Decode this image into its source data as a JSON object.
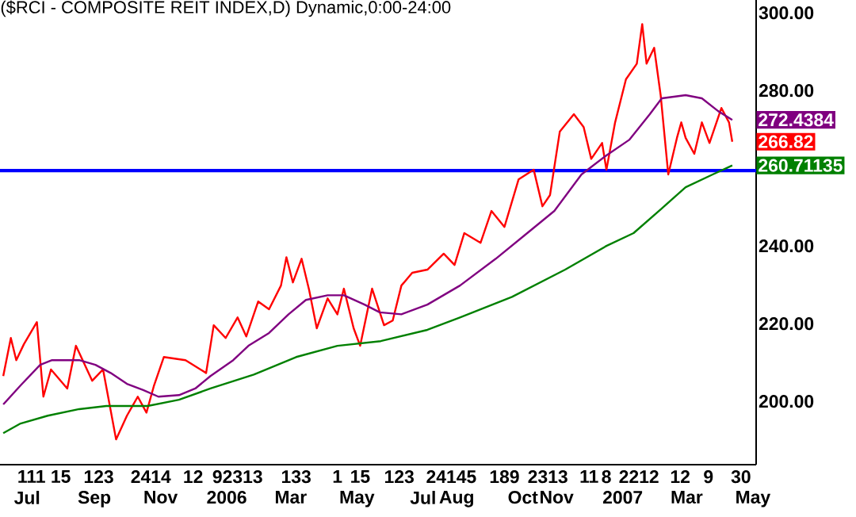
{
  "chart_data": {
    "type": "line",
    "title": "($RCI - COMPOSITE REIT INDEX,D) Dynamic,0:00-24:00",
    "xlim": [
      "2005-06-06",
      "2007-05-04"
    ],
    "xticks": [
      {
        "value": "2005-07-01",
        "label": "Jul"
      },
      {
        "value": "2005-09-01",
        "label": "Sep"
      },
      {
        "value": "2005-11-01",
        "label": "Nov"
      },
      {
        "value": "2006-01-01",
        "label": "2006"
      },
      {
        "value": "2006-03-01",
        "label": "Mar"
      },
      {
        "value": "2006-05-01",
        "label": "May"
      },
      {
        "value": "2006-07-01",
        "label": "Jul"
      },
      {
        "value": "2006-08-01",
        "label": "Aug"
      },
      {
        "value": "2006-10-01",
        "label": "Oct"
      },
      {
        "value": "2006-11-01",
        "label": "Nov"
      },
      {
        "value": "2007-01-01",
        "label": "2007"
      },
      {
        "value": "2007-03-01",
        "label": "Mar"
      },
      {
        "value": "2007-05-01",
        "label": "May"
      }
    ],
    "x2lim": [
      "2005-06-06",
      "2007-05-04"
    ],
    "x2ticks": [
      {
        "value": "2005-07-05",
        "label": "111"
      },
      {
        "value": "2005-08-01",
        "label": "15"
      },
      {
        "value": "2005-09-05",
        "label": "123"
      },
      {
        "value": "2005-10-23",
        "label": "2414"
      },
      {
        "value": "2005-12-01",
        "label": "12"
      },
      {
        "value": "2006-01-11",
        "label": "92313"
      },
      {
        "value": "2006-03-06",
        "label": "133"
      },
      {
        "value": "2006-04-13",
        "label": "1"
      },
      {
        "value": "2006-05-04",
        "label": "15"
      },
      {
        "value": "2006-06-09",
        "label": "123"
      },
      {
        "value": "2006-07-27",
        "label": "24145"
      },
      {
        "value": "2006-09-14",
        "label": "189"
      },
      {
        "value": "2006-10-24",
        "label": "2313"
      },
      {
        "value": "2006-12-01",
        "label": "11"
      },
      {
        "value": "2006-12-17",
        "label": "8"
      },
      {
        "value": "2007-01-16",
        "label": "2212"
      },
      {
        "value": "2007-02-23",
        "label": "12"
      },
      {
        "value": "2007-03-21",
        "label": "9"
      },
      {
        "value": "2007-04-20",
        "label": "30"
      }
    ],
    "ylim": [
      183.7,
      303.3
    ],
    "yticks": [
      {
        "value": 200,
        "label": "200.00"
      },
      {
        "value": 220,
        "label": "220.00"
      },
      {
        "value": 240,
        "label": "240.00"
      },
      {
        "value": 280,
        "label": "280.00"
      },
      {
        "value": 300,
        "label": "300.00"
      }
    ],
    "ref_lines": [
      {
        "axis": "y",
        "value": 259.4,
        "color": "#0000ff"
      }
    ],
    "series": [
      {
        "color": "#ff0000",
        "x": [
          "2005-06-09",
          "2005-06-16",
          "2005-06-21",
          "2005-06-28",
          "2005-07-10",
          "2005-07-16",
          "2005-07-23",
          "2005-08-07",
          "2005-08-15",
          "2005-08-30",
          "2005-09-09",
          "2005-09-21",
          "2005-10-01",
          "2005-10-11",
          "2005-10-19",
          "2005-10-26",
          "2005-11-04",
          "2005-11-24",
          "2005-12-13",
          "2005-12-20",
          "2005-12-31",
          "2006-01-11",
          "2006-01-19",
          "2006-01-30",
          "2006-02-09",
          "2006-02-20",
          "2006-02-25",
          "2006-03-03",
          "2006-03-11",
          "2006-03-18",
          "2006-03-25",
          "2006-04-04",
          "2006-04-13",
          "2006-04-19",
          "2006-04-28",
          "2006-05-04",
          "2006-05-15",
          "2006-05-26",
          "2006-06-03",
          "2006-06-11",
          "2006-06-21",
          "2006-07-05",
          "2006-07-20",
          "2006-07-30",
          "2006-08-08",
          "2006-08-23",
          "2006-09-02",
          "2006-09-14",
          "2006-09-27",
          "2006-10-11",
          "2006-10-19",
          "2006-10-26",
          "2006-11-04",
          "2006-11-17",
          "2006-11-26",
          "2006-12-03",
          "2006-12-13",
          "2006-12-17",
          "2006-12-25",
          "2007-01-04",
          "2007-01-14",
          "2007-01-19",
          "2007-01-23",
          "2007-01-30",
          "2007-02-05",
          "2007-02-12",
          "2007-02-20",
          "2007-02-24",
          "2007-02-28",
          "2007-03-08",
          "2007-03-15",
          "2007-03-22",
          "2007-04-02",
          "2007-04-09",
          "2007-04-12"
        ],
        "values": [
          206.5,
          216.3,
          210.6,
          214.7,
          220.4,
          201.2,
          208.2,
          203.3,
          214.3,
          205.3,
          208.2,
          190.2,
          196.3,
          201.2,
          197.1,
          204.1,
          211.4,
          210.6,
          207.3,
          219.6,
          216.3,
          221.6,
          216.7,
          225.7,
          223.7,
          229.8,
          237.1,
          230.6,
          236.7,
          228.6,
          218.8,
          226.5,
          222.4,
          229.0,
          218.8,
          214.3,
          229.0,
          219.6,
          220.8,
          229.8,
          233.1,
          233.9,
          238.0,
          235.1,
          243.3,
          240.8,
          249.0,
          244.9,
          257.1,
          259.6,
          250.2,
          253.1,
          269.4,
          273.9,
          270.6,
          262.4,
          266.5,
          259.6,
          271.8,
          282.9,
          286.9,
          297.1,
          286.9,
          291.0,
          278.8,
          258.4,
          267.8,
          271.8,
          267.8,
          263.7,
          271.8,
          266.5,
          275.5,
          271.8,
          266.82
        ],
        "value_labels": [
          null,
          null,
          null,
          null,
          null,
          null,
          null,
          null,
          null,
          null,
          null,
          null,
          null,
          null,
          null,
          null,
          null,
          null,
          null,
          null,
          null,
          null,
          null,
          null,
          null,
          null,
          null,
          null,
          null,
          null,
          null,
          null,
          null,
          null,
          null,
          null,
          null,
          null,
          null,
          null,
          null,
          null,
          null,
          null,
          null,
          null,
          null,
          null,
          null,
          null,
          null,
          null,
          null,
          null,
          null,
          null,
          null,
          null,
          null,
          null,
          null,
          null,
          null,
          null,
          null,
          null,
          null,
          null,
          null,
          null,
          null,
          null,
          null,
          null,
          "266.82"
        ]
      },
      {
        "color": "#800080",
        "x": [
          "2005-06-09",
          "2005-06-25",
          "2005-07-13",
          "2005-07-24",
          "2005-08-18",
          "2005-09-02",
          "2005-09-16",
          "2005-10-01",
          "2005-10-16",
          "2005-10-30",
          "2005-11-18",
          "2005-12-03",
          "2005-12-17",
          "2006-01-07",
          "2006-01-21",
          "2006-02-09",
          "2006-02-27",
          "2006-03-15",
          "2006-04-04",
          "2006-04-19",
          "2006-05-08",
          "2006-05-22",
          "2006-06-11",
          "2006-07-05",
          "2006-08-04",
          "2006-09-06",
          "2006-10-05",
          "2006-10-30",
          "2006-11-24",
          "2006-12-17",
          "2007-01-07",
          "2007-01-26",
          "2007-02-06",
          "2007-02-28",
          "2007-03-15",
          "2007-03-30",
          "2007-04-12"
        ],
        "values": [
          199.2,
          204.1,
          209.4,
          210.6,
          210.6,
          209.4,
          207.3,
          204.5,
          202.9,
          201.2,
          201.6,
          203.3,
          206.5,
          210.6,
          214.3,
          217.6,
          222.4,
          226.1,
          227.3,
          227.3,
          224.9,
          222.9,
          222.4,
          224.9,
          229.8,
          236.7,
          243.3,
          249.0,
          258.4,
          263.3,
          267.3,
          273.9,
          278.0,
          278.8,
          278.0,
          274.7,
          272.4384
        ],
        "value_labels": [
          null,
          null,
          null,
          null,
          null,
          null,
          null,
          null,
          null,
          null,
          null,
          null,
          null,
          null,
          null,
          null,
          null,
          null,
          null,
          null,
          null,
          null,
          null,
          null,
          null,
          null,
          null,
          null,
          null,
          null,
          null,
          null,
          null,
          null,
          null,
          null,
          "272.4384"
        ]
      },
      {
        "color": "#008000",
        "x": [
          "2005-06-09",
          "2005-06-25",
          "2005-07-20",
          "2005-08-18",
          "2005-09-12",
          "2005-10-20",
          "2005-11-18",
          "2005-12-17",
          "2006-01-26",
          "2006-03-06",
          "2006-04-13",
          "2006-05-23",
          "2006-07-05",
          "2006-08-04",
          "2006-09-21",
          "2006-11-09",
          "2006-12-17",
          "2007-01-11",
          "2007-02-05",
          "2007-02-28",
          "2007-03-25",
          "2007-04-12"
        ],
        "values": [
          191.8,
          194.3,
          196.3,
          198.0,
          198.8,
          198.8,
          200.4,
          203.3,
          206.9,
          211.4,
          214.3,
          215.5,
          218.4,
          221.6,
          226.9,
          233.9,
          240.0,
          243.3,
          249.4,
          255.1,
          258.4,
          260.71135
        ],
        "value_labels": [
          null,
          null,
          null,
          null,
          null,
          null,
          null,
          null,
          null,
          null,
          null,
          null,
          null,
          null,
          null,
          null,
          null,
          null,
          null,
          null,
          null,
          "260.71135"
        ]
      }
    ]
  }
}
